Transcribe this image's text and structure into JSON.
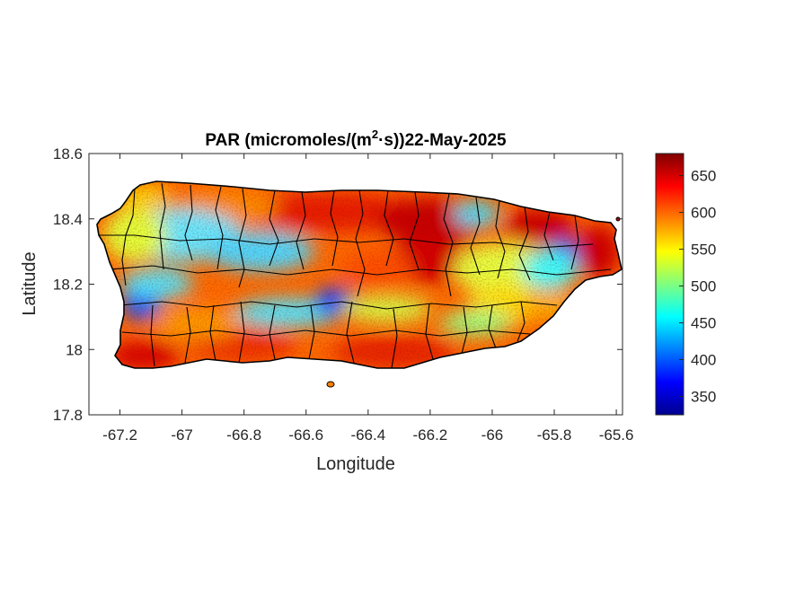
{
  "title": {
    "prefix": "PAR (micromoles/(m",
    "superscript": "2",
    "suffix": "·s))22-May-2025"
  },
  "map": {
    "xlabel": "Longitude",
    "ylabel": "Latitude",
    "xlim": [
      -67.3,
      -65.58
    ],
    "ylim": [
      17.8,
      18.6
    ],
    "xticks": [
      -67.2,
      -67,
      -66.8,
      -66.6,
      -66.4,
      -66.2,
      -66,
      -65.8,
      -65.6
    ],
    "xtick_labels": [
      "-67.2",
      "-67",
      "-66.8",
      "-66.6",
      "-66.4",
      "-66.2",
      "-66",
      "-65.8",
      "-65.6"
    ],
    "yticks": [
      17.8,
      18,
      18.2,
      18.4,
      18.6
    ],
    "ytick_labels": [
      "17.8",
      "18",
      "18.2",
      "18.4",
      "18.6"
    ],
    "land_outline_color": "#000000",
    "municipality_border_color": "#000000"
  },
  "colorbar": {
    "colormap": "jet",
    "range": [
      325,
      680
    ],
    "ticks": [
      350,
      400,
      450,
      500,
      550,
      600,
      650
    ],
    "tick_labels": [
      "350",
      "400",
      "450",
      "500",
      "550",
      "600",
      "650"
    ],
    "placement": "right"
  },
  "field_summary": {
    "low_areas": [
      {
        "lon": -67.13,
        "lat": 18.16,
        "value": 380
      },
      {
        "lon": -66.52,
        "lat": 18.15,
        "value": 390
      },
      {
        "lon": -65.76,
        "lat": 18.28,
        "value": 400
      },
      {
        "lon": -66.05,
        "lat": 18.42,
        "value": 470
      },
      {
        "lon": -66.85,
        "lat": 18.3,
        "value": 470
      }
    ],
    "high_areas": [
      {
        "lon": -67.2,
        "lat": 17.97,
        "value": 660
      },
      {
        "lon": -66.2,
        "lat": 18.33,
        "value": 660
      },
      {
        "lon": -65.7,
        "lat": 18.33,
        "value": 660
      },
      {
        "lon": -66.6,
        "lat": 18.46,
        "value": 640
      },
      {
        "lon": -66.5,
        "lat": 17.97,
        "value": 640
      }
    ]
  }
}
